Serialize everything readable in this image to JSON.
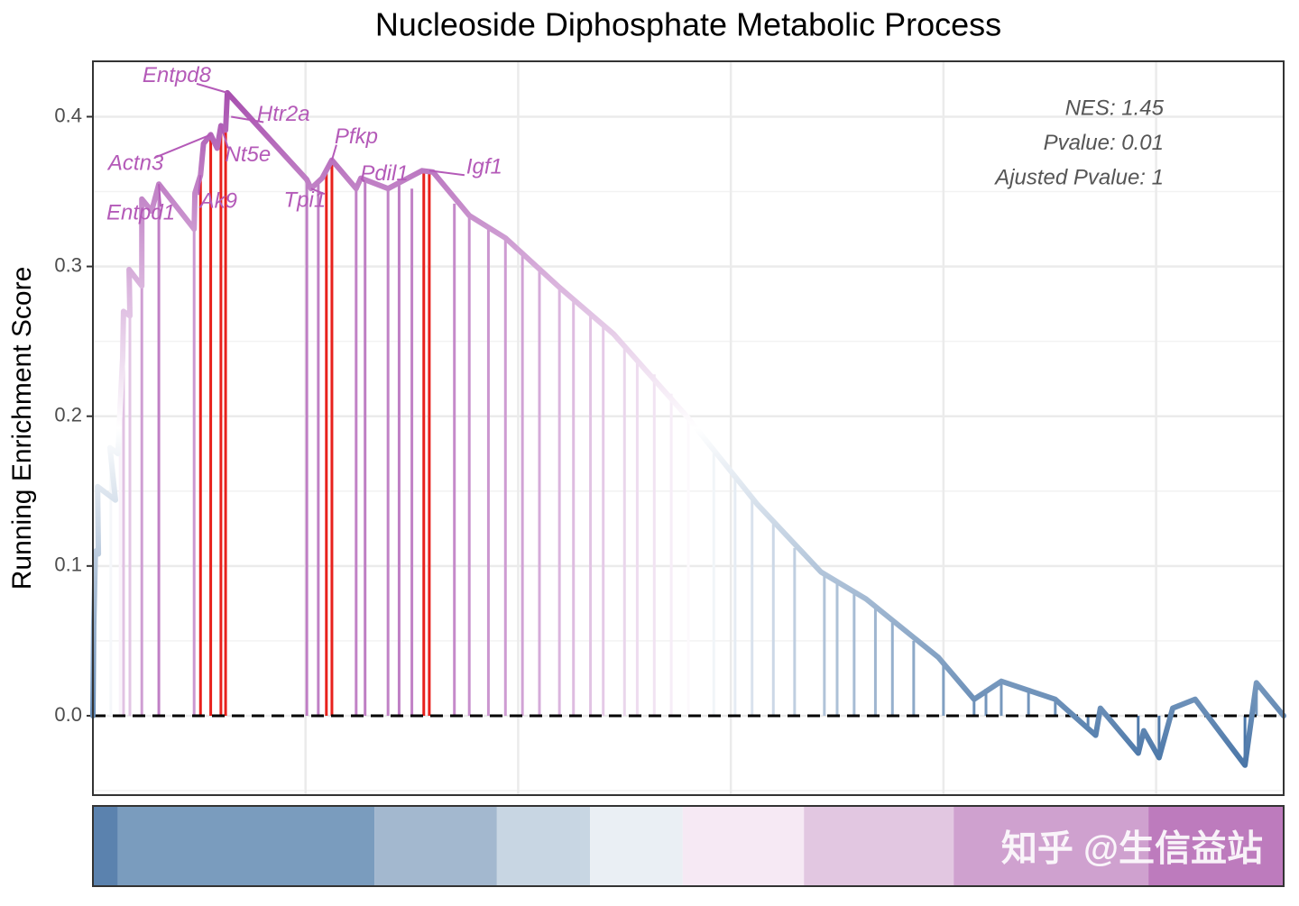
{
  "chart_data": {
    "type": "gsea",
    "title": "Nucleoside Diphosphate Metabolic Process",
    "ylabel": "Running Enrichment Score",
    "xlim": [
      0,
      28
    ],
    "ylim": [
      -0.053,
      0.437
    ],
    "yticks": [
      {
        "value": 0,
        "label": "0.0"
      },
      0.1,
      0.2,
      0.3,
      0.4
    ],
    "ygrid_minor": [
      -0.05,
      0.05,
      0.15,
      0.25,
      0.35
    ],
    "xgrid": [
      5,
      10,
      15,
      20,
      25
    ],
    "grid": true,
    "colors": [
      "#3a6aa0",
      "#ffffff",
      "#a040a8"
    ],
    "curve": {
      "x": [
        0,
        0.02,
        0.06,
        0.13,
        0.11,
        0.53,
        0.4,
        0.59,
        0.64,
        0.7,
        0.72,
        0.87,
        0.85,
        1.15,
        1.15,
        1.15,
        1.38,
        1.55,
        2.38,
        2.4,
        2.53,
        2.6,
        2.77,
        2.92,
        3.01,
        3.12,
        3.16,
        5.03,
        5.13,
        5.39,
        5.62,
        6.19,
        6.3,
        6.94,
        7.74,
        8.0,
        8.85,
        9.7,
        10.97,
        12.24,
        13.93,
        15.63,
        17.12,
        18.18,
        19.88,
        20.72,
        21.36,
        22.63,
        23.58,
        23.69,
        24.58,
        24.71,
        25.07,
        25.39,
        25.92,
        27.09,
        27.36,
        28
      ],
      "values": [
        0,
        0.06,
        0.11,
        0.108,
        0.153,
        0.144,
        0.179,
        0.175,
        0.207,
        0.239,
        0.27,
        0.267,
        0.298,
        0.287,
        0.317,
        0.345,
        0.337,
        0.355,
        0.325,
        0.349,
        0.361,
        0.382,
        0.388,
        0.379,
        0.394,
        0.391,
        0.416,
        0.358,
        0.352,
        0.359,
        0.371,
        0.352,
        0.359,
        0.352,
        0.364,
        0.363,
        0.334,
        0.319,
        0.286,
        0.255,
        0.201,
        0.141,
        0.096,
        0.078,
        0.039,
        0.011,
        0.023,
        0.011,
        -0.013,
        0.005,
        -0.025,
        -0.01,
        -0.028,
        0.005,
        0.011,
        -0.033,
        0.022,
        0
      ]
    },
    "hits": {
      "x": [
        0.42,
        0.64,
        0.72,
        0.87,
        1.15,
        1.55,
        2.38,
        5.03,
        5.3,
        6.19,
        6.4,
        6.94,
        7.2,
        7.5,
        8.5,
        8.85,
        9.3,
        9.7,
        10.1,
        10.5,
        10.97,
        11.3,
        11.7,
        12.0,
        12.5,
        12.8,
        13.2,
        13.6,
        14.0,
        14.6,
        15.1,
        15.5,
        16.0,
        16.5,
        17.2,
        17.5,
        17.9,
        18.4,
        18.8,
        19.3,
        20.0,
        20.72,
        21.0,
        21.36,
        22.0,
        22.63,
        23.4,
        24.58,
        25.07,
        27.09,
        27.36
      ],
      "values": [
        0.179,
        0.207,
        0.27,
        0.267,
        0.317,
        0.355,
        0.325,
        0.358,
        0.355,
        0.352,
        0.357,
        0.352,
        0.356,
        0.352,
        0.342,
        0.334,
        0.327,
        0.319,
        0.31,
        0.3,
        0.286,
        0.278,
        0.268,
        0.26,
        0.245,
        0.237,
        0.228,
        0.215,
        0.2,
        0.175,
        0.16,
        0.145,
        0.128,
        0.112,
        0.094,
        0.09,
        0.082,
        0.072,
        0.062,
        0.05,
        0.035,
        0.011,
        0.018,
        0.023,
        0.018,
        0.011,
        -0.008,
        -0.025,
        -0.028,
        -0.033,
        0.022
      ]
    },
    "leading_hits": {
      "color": "#e8211c",
      "x": [
        2.53,
        2.77,
        3.01,
        3.12,
        5.49,
        5.62,
        7.78,
        7.91
      ],
      "values": [
        0.361,
        0.388,
        0.394,
        0.391,
        0.364,
        0.371,
        0.364,
        0.364
      ]
    },
    "annotations": [
      {
        "label": "Entpd8",
        "x": 3.16,
        "y": 0.416
      },
      {
        "label": "Htr2a",
        "x": 3.25,
        "y": 0.4
      },
      {
        "label": "Pfkp",
        "x": 5.62,
        "y": 0.371
      },
      {
        "label": "Nt5e",
        "x": 3.01,
        "y": 0.394
      },
      {
        "label": "Actn3",
        "x": 2.77,
        "y": 0.388
      },
      {
        "label": "Igf1",
        "x": 7.91,
        "y": 0.364
      },
      {
        "label": "Ak9",
        "x": 2.53,
        "y": 0.361
      },
      {
        "label": "Entpd1",
        "x": 1.55,
        "y": 0.355
      },
      {
        "label": "Tpi1",
        "x": 5.13,
        "y": 0.352
      },
      {
        "label": "Pdil1",
        "x": 6.3,
        "y": 0.359
      }
    ],
    "stats": [
      "NES: 1.45",
      "Pvalue: 0.01",
      "Ajusted Pvalue: 1"
    ],
    "colorbar": {
      "breaks": [
        0,
        0.59,
        6.62,
        9.5,
        11.69,
        13.87,
        16.72,
        20.24,
        24.82,
        28
      ],
      "colors": [
        "#5b82ae",
        "#7a9cbe",
        "#a3b8cf",
        "#c8d6e3",
        "#eaeff4",
        "#f6e9f4",
        "#e2c7e1",
        "#cfa1cf",
        "#bd7bbd"
      ]
    },
    "watermark": "知乎 @生信益站"
  }
}
